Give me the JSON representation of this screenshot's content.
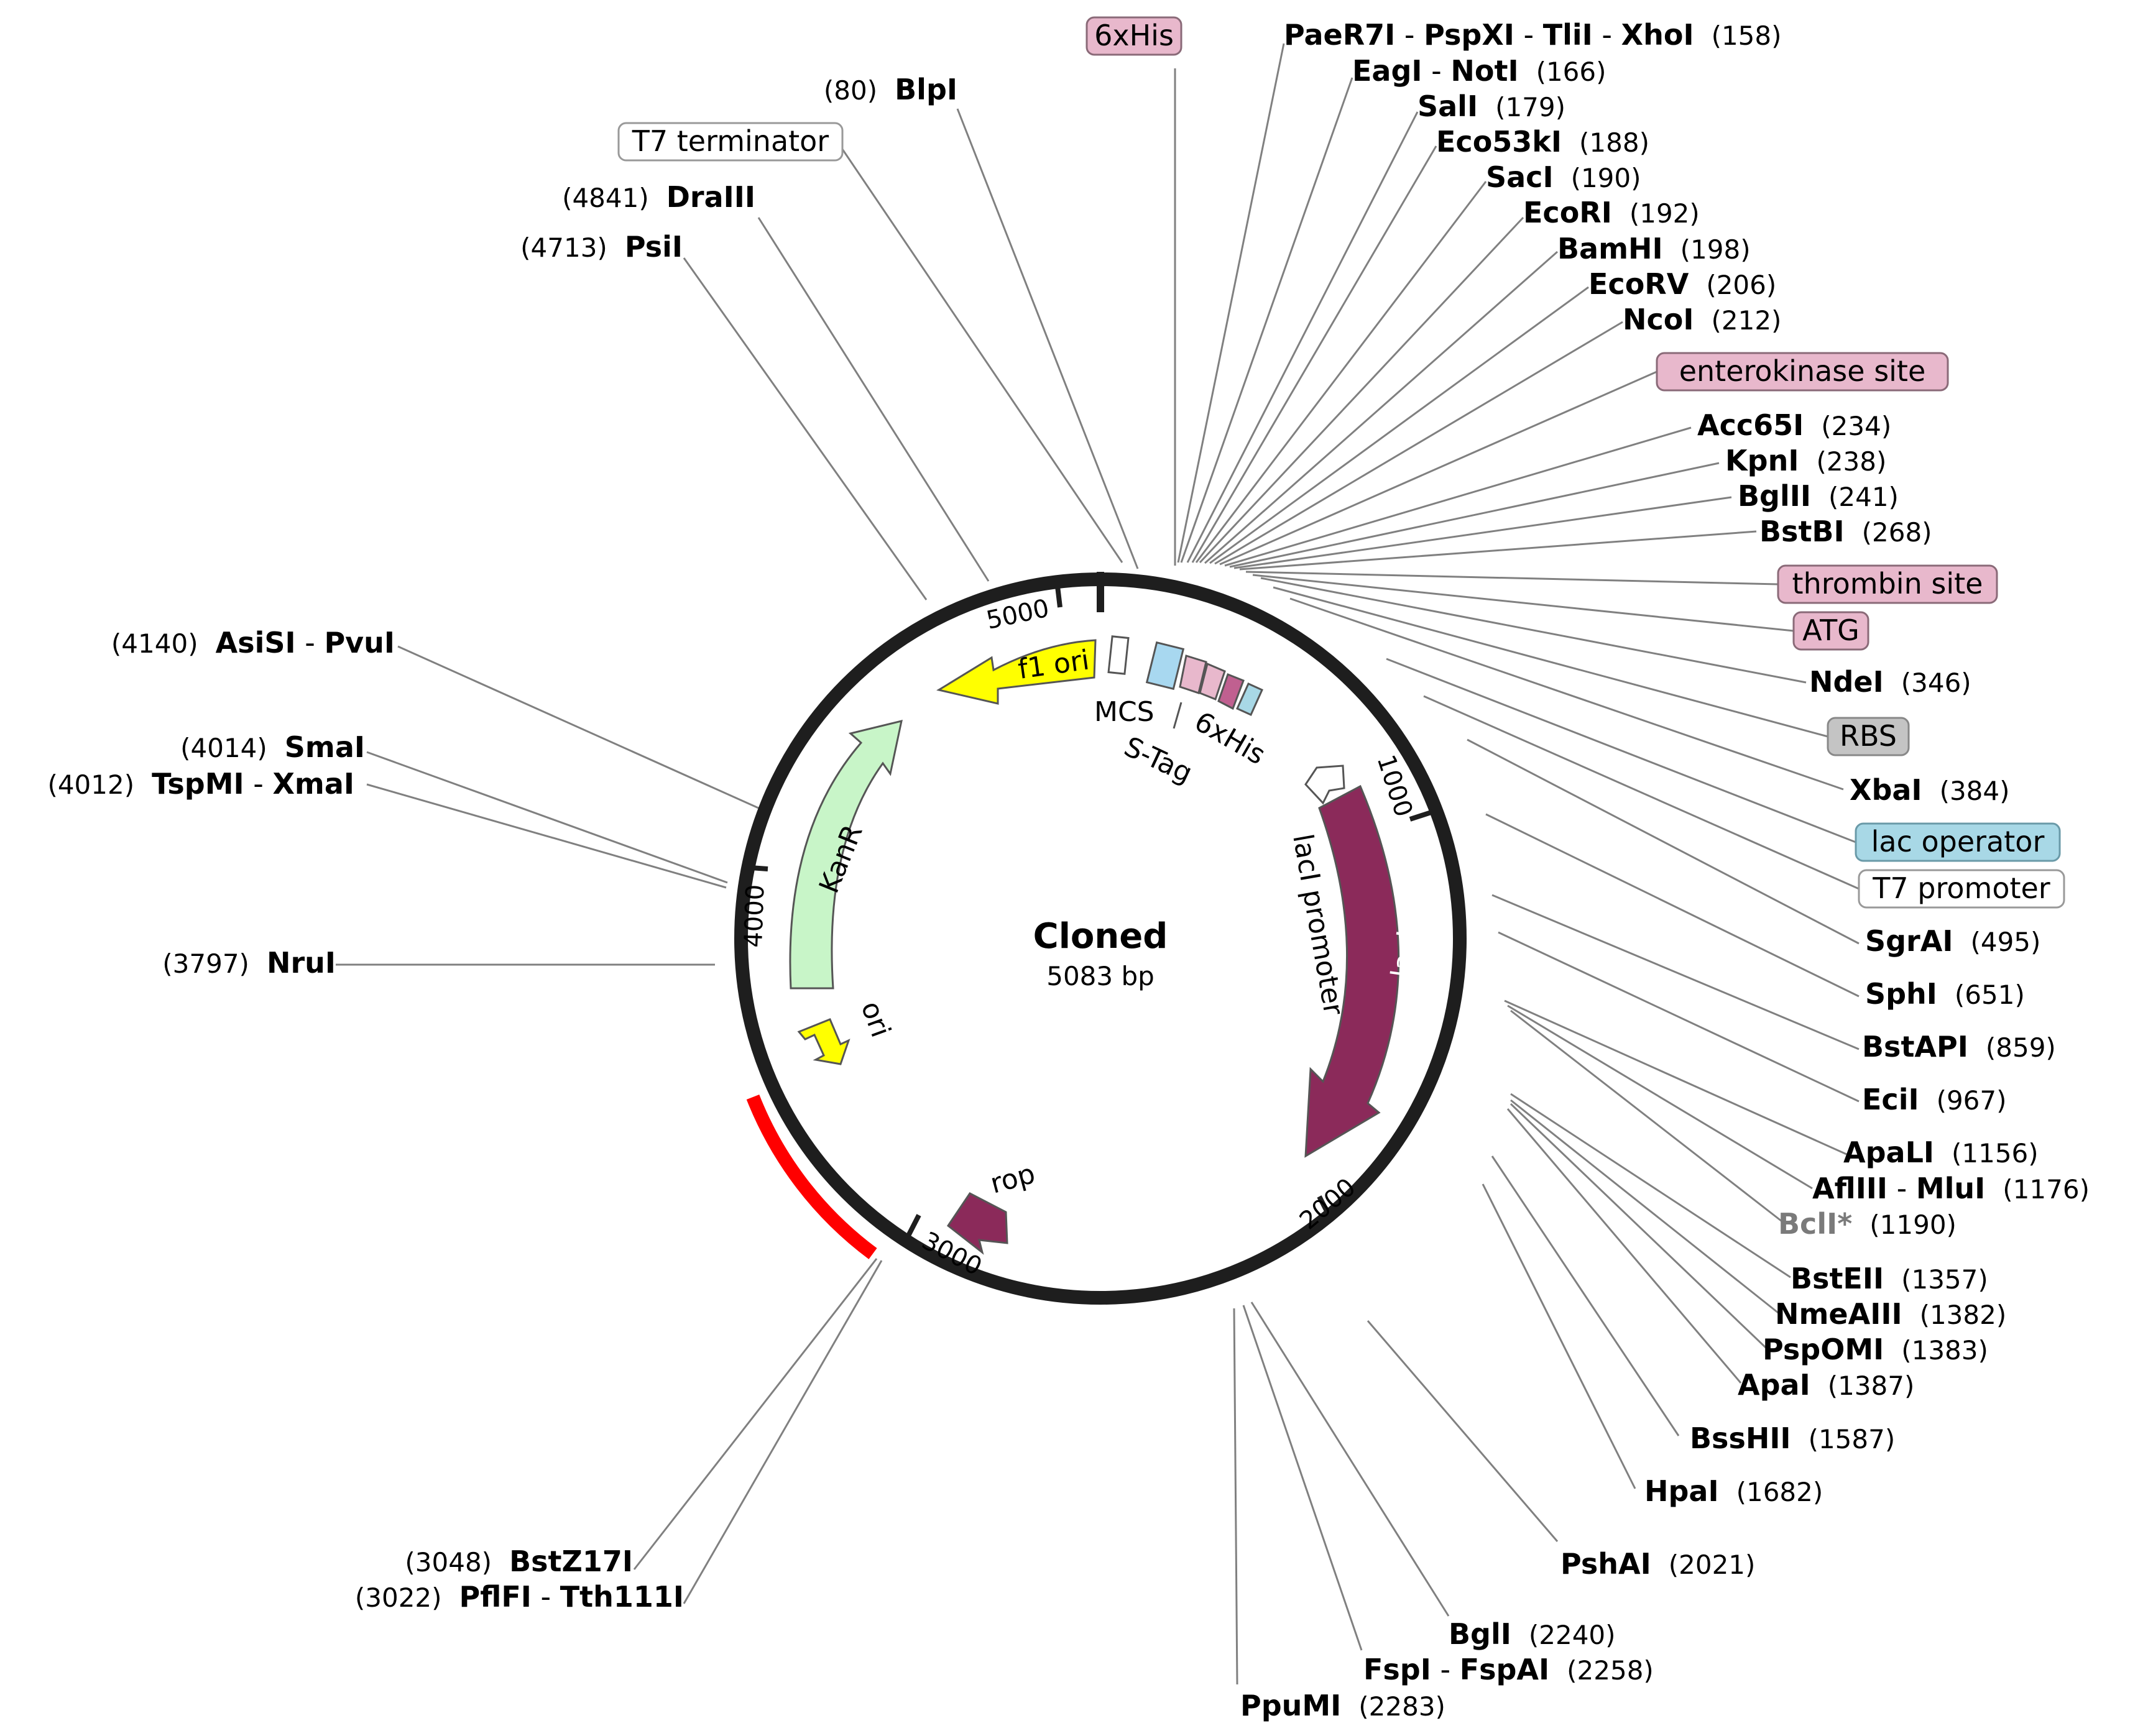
{
  "title": "Cloned",
  "size_label": "5083 bp",
  "backbone_ticks": [
    "1000",
    "2000",
    "3000",
    "4000",
    "5000"
  ],
  "inner_labels": {
    "f1_ori": "f1 ori",
    "kanr": "KanR",
    "ori": "ori",
    "rop": "rop",
    "laci": "lacI",
    "laci_promoter": "lacI promoter",
    "mcs": "MCS",
    "his": "6xHis",
    "stag": "S-Tag"
  },
  "features": {
    "his6": "6xHis",
    "t7_terminator": "T7 terminator",
    "enterokinase": "enterokinase site",
    "thrombin": "thrombin site",
    "atg": "ATG",
    "rbs": "RBS",
    "lac_operator": "lac operator",
    "t7_promoter": "T7 promoter"
  },
  "sites_right": [
    {
      "names": [
        "PaeR7I",
        "PspXI",
        "TliI",
        "XhoI"
      ],
      "pos": "(158)"
    },
    {
      "names": [
        "EagI",
        "NotI"
      ],
      "pos": "(166)"
    },
    {
      "names": [
        "SalI"
      ],
      "pos": "(179)"
    },
    {
      "names": [
        "Eco53kI"
      ],
      "pos": "(188)"
    },
    {
      "names": [
        "SacI"
      ],
      "pos": "(190)"
    },
    {
      "names": [
        "EcoRI"
      ],
      "pos": "(192)"
    },
    {
      "names": [
        "BamHI"
      ],
      "pos": "(198)"
    },
    {
      "names": [
        "EcoRV"
      ],
      "pos": "(206)"
    },
    {
      "names": [
        "NcoI"
      ],
      "pos": "(212)"
    },
    {
      "names": [
        "Acc65I"
      ],
      "pos": "(234)"
    },
    {
      "names": [
        "KpnI"
      ],
      "pos": "(238)"
    },
    {
      "names": [
        "BglII"
      ],
      "pos": "(241)"
    },
    {
      "names": [
        "BstBI"
      ],
      "pos": "(268)"
    },
    {
      "names": [
        "NdeI"
      ],
      "pos": "(346)"
    },
    {
      "names": [
        "XbaI"
      ],
      "pos": "(384)"
    },
    {
      "names": [
        "SgrAI"
      ],
      "pos": "(495)"
    },
    {
      "names": [
        "SphI"
      ],
      "pos": "(651)"
    },
    {
      "names": [
        "BstAPI"
      ],
      "pos": "(859)"
    },
    {
      "names": [
        "EciI"
      ],
      "pos": "(967)"
    },
    {
      "names": [
        "ApaLI"
      ],
      "pos": "(1156)"
    },
    {
      "names": [
        "AflIII",
        "MluI"
      ],
      "pos": "(1176)"
    },
    {
      "names": [
        "BclI*"
      ],
      "pos": "(1190)"
    },
    {
      "names": [
        "BstEII"
      ],
      "pos": "(1357)"
    },
    {
      "names": [
        "NmeAIII"
      ],
      "pos": "(1382)"
    },
    {
      "names": [
        "PspOMI"
      ],
      "pos": "(1383)"
    },
    {
      "names": [
        "ApaI"
      ],
      "pos": "(1387)"
    },
    {
      "names": [
        "BssHII"
      ],
      "pos": "(1587)"
    },
    {
      "names": [
        "HpaI"
      ],
      "pos": "(1682)"
    },
    {
      "names": [
        "PshAI"
      ],
      "pos": "(2021)"
    },
    {
      "names": [
        "BglI"
      ],
      "pos": "(2240)"
    },
    {
      "names": [
        "FspI",
        "FspAI"
      ],
      "pos": "(2258)"
    },
    {
      "names": [
        "PpuMI"
      ],
      "pos": "(2283)"
    }
  ],
  "sites_left": [
    {
      "names": [
        "BlpI"
      ],
      "pos": "(80)"
    },
    {
      "names": [
        "DraIII"
      ],
      "pos": "(4841)"
    },
    {
      "names": [
        "PsiI"
      ],
      "pos": "(4713)"
    },
    {
      "names": [
        "AsiSI",
        "PvuI"
      ],
      "pos": "(4140)"
    },
    {
      "names": [
        "SmaI"
      ],
      "pos": "(4014)"
    },
    {
      "names": [
        "TspMI",
        "XmaI"
      ],
      "pos": "(4012)"
    },
    {
      "names": [
        "NruI"
      ],
      "pos": "(3797)"
    },
    {
      "names": [
        "BstZ17I"
      ],
      "pos": "(3048)"
    },
    {
      "names": [
        "PflFI",
        "Tth111I"
      ],
      "pos": "(3022)"
    }
  ],
  "colors": {
    "backbone": "#1e1e1e",
    "highlight": "#ff0000",
    "f1_ori": "#ffff00",
    "kanr": "#c8f5c8",
    "ori": "#ffff00",
    "rop": "#8b2a5a",
    "laci": "#8b2a5a",
    "feature_pink": "#e8b8cc",
    "feature_blue": "#a8d8e6",
    "feature_grey": "#c4c4c4"
  }
}
